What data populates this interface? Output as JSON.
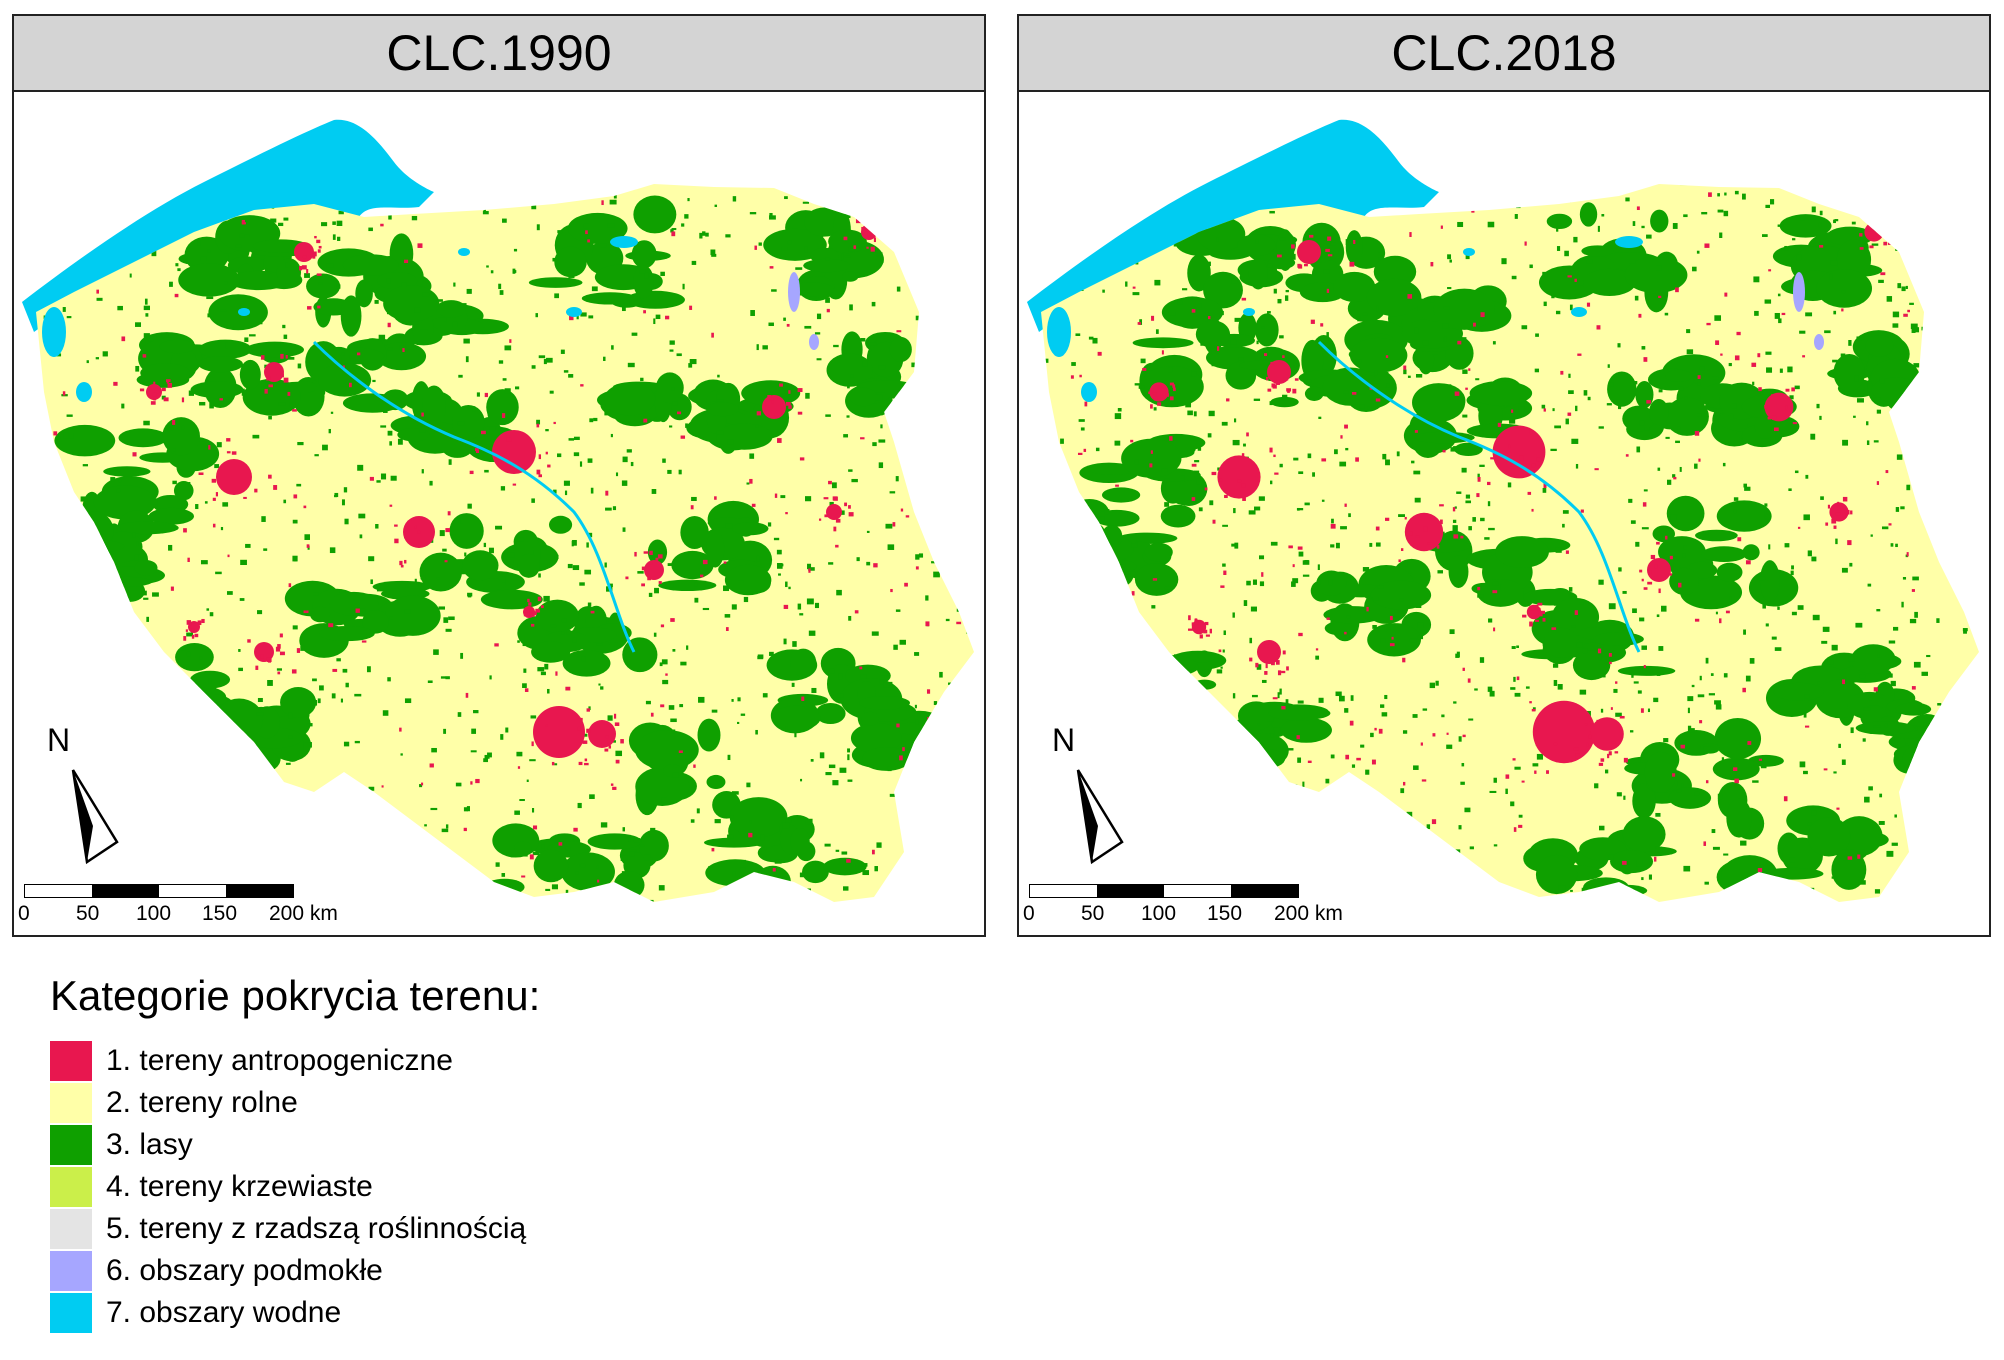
{
  "panels": [
    {
      "id": "1990",
      "title": "CLC.1990"
    },
    {
      "id": "2018",
      "title": "CLC.2018"
    }
  ],
  "north_arrow": {
    "label": "N"
  },
  "scale_bar": {
    "ticks": [
      "0",
      "50",
      "100",
      "150",
      "200 km"
    ]
  },
  "legend": {
    "title": "Kategorie pokrycia terenu:",
    "items": [
      {
        "label": "1. tereny antropogeniczne",
        "color": "#e8174f"
      },
      {
        "label": "2. tereny rolne",
        "color": "#ffffa8"
      },
      {
        "label": "3. lasy",
        "color": "#0fa000"
      },
      {
        "label": "4. tereny krzewiaste",
        "color": "#cbef4a"
      },
      {
        "label": "5. tereny z rzadszą roślinnością",
        "color": "#e4e4e4"
      },
      {
        "label": "6. obszary podmokłe",
        "color": "#a6a6ff"
      },
      {
        "label": "7. obszary wodne",
        "color": "#00ccf2"
      }
    ]
  }
}
